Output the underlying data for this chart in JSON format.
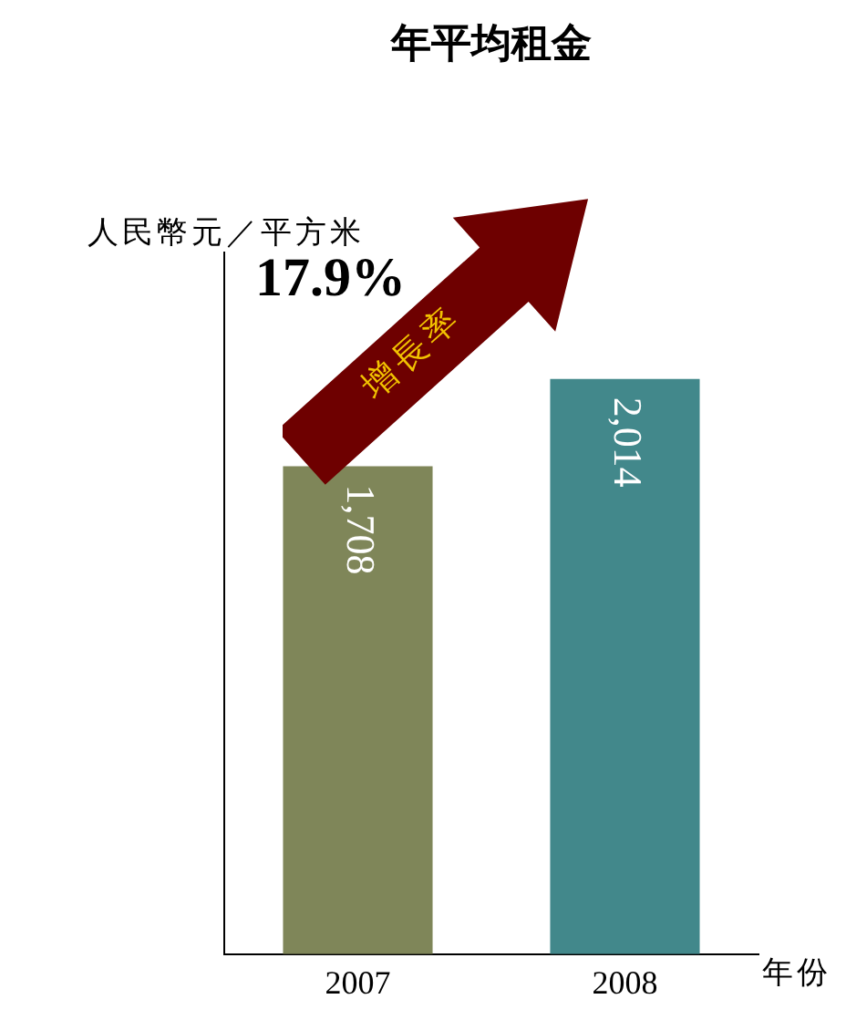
{
  "chart_data": {
    "type": "bar",
    "title": "年平均租金",
    "ylabel": "人民幣元／平方米",
    "xlabel": "年份",
    "categories": [
      "2007",
      "2008"
    ],
    "values": [
      1708,
      2014
    ],
    "colors": [
      "#7f8659",
      "#42888b"
    ],
    "value_labels": [
      "1,708",
      "2,014"
    ],
    "tick_labels": "x",
    "grid": false,
    "legend": false,
    "annotations": [
      "17.9%",
      "增長率"
    ]
  }
}
